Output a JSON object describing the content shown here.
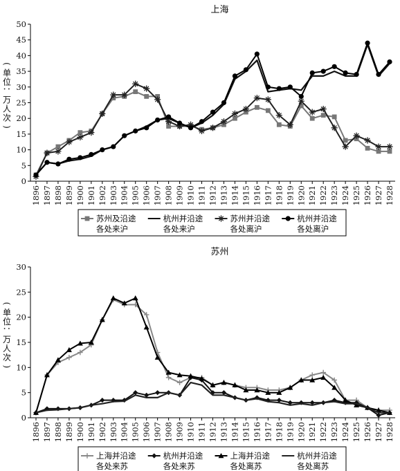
{
  "chart_data": [
    {
      "type": "line",
      "title": "上海",
      "ylabel": "(单位：万人次)",
      "xlabel": "",
      "ylim": [
        0,
        50
      ],
      "yticks": [
        0,
        5,
        10,
        15,
        20,
        25,
        30,
        35,
        40,
        45,
        50
      ],
      "categories": [
        "1896",
        "1897",
        "1898",
        "1899",
        "1900",
        "1901",
        "1902",
        "1903",
        "1904",
        "1905",
        "1906",
        "1907",
        "1908",
        "1909",
        "1910",
        "1911",
        "1912",
        "1913",
        "1914",
        "1915",
        "1916",
        "1917",
        "1918",
        "1919",
        "1920",
        "1921",
        "1922",
        "1923",
        "1924",
        "1925",
        "1926",
        "1927",
        "1928"
      ],
      "series": [
        {
          "name": "苏州及沿途各处来沪",
          "color": "#777777",
          "marker": "square",
          "values": [
            2,
            9,
            11,
            13,
            15.5,
            16,
            21.5,
            26.5,
            27,
            28.5,
            27,
            27,
            17.5,
            17.5,
            17.5,
            16.5,
            17,
            18,
            20,
            22,
            23.5,
            22.5,
            18,
            17.5,
            24,
            20,
            21,
            20.5,
            13,
            13.5,
            10.5,
            9.5,
            9.5
          ]
        },
        {
          "name": "杭州并沿途各处来沪",
          "color": "#111111",
          "marker": "none",
          "values": [
            2,
            6,
            5.5,
            6.5,
            7,
            8,
            10,
            11,
            14.5,
            16,
            17.5,
            19.5,
            20,
            18.5,
            17,
            18.5,
            21,
            24.5,
            32.5,
            35,
            38.5,
            28.5,
            29,
            29.5,
            29,
            33.5,
            33.5,
            35,
            33.5,
            33.5,
            43.5,
            33.5,
            37.5
          ]
        },
        {
          "name": "苏州并沿途各处离沪",
          "color": "#222222",
          "marker": "star",
          "values": [
            1.5,
            9,
            9.5,
            12.5,
            14,
            15.5,
            21.5,
            27.5,
            27.5,
            31,
            29.5,
            26,
            19,
            17.5,
            18,
            16,
            17,
            19,
            21.5,
            23,
            26.5,
            26,
            21,
            18,
            25.5,
            22,
            23,
            17,
            11,
            14.5,
            13,
            11,
            11
          ]
        },
        {
          "name": "杭州并沿途各处离沪",
          "color": "#000000",
          "marker": "circle",
          "values": [
            2,
            6,
            5.5,
            7,
            7.5,
            8.5,
            10,
            11,
            14.5,
            16,
            17,
            19.5,
            20.5,
            18.5,
            17,
            19,
            22,
            25,
            33.5,
            35.5,
            40.5,
            30,
            29.5,
            30,
            27,
            34.5,
            35,
            36.5,
            34.5,
            34,
            44,
            34,
            38
          ]
        }
      ],
      "legend_position": "bottom"
    },
    {
      "type": "line",
      "title": "苏州",
      "ylabel": "(单位：万人次)",
      "xlabel": "",
      "ylim": [
        0,
        30
      ],
      "yticks": [
        0,
        5,
        10,
        15,
        20,
        25,
        30
      ],
      "categories": [
        "1896",
        "1897",
        "1898",
        "1899",
        "1900",
        "1901",
        "1902",
        "1903",
        "1904",
        "1905",
        "1906",
        "1907",
        "1908",
        "1909",
        "1910",
        "1911",
        "1912",
        "1913",
        "1914",
        "1915",
        "1916",
        "1917",
        "1918",
        "1919",
        "1920",
        "1921",
        "1922",
        "1923",
        "1924",
        "1925",
        "1926",
        "1927",
        "1928"
      ],
      "series": [
        {
          "name": "上海并沿途各处来苏",
          "color": "#888888",
          "marker": "plus",
          "values": [
            1,
            8.5,
            11,
            12,
            13,
            14.5,
            19.5,
            23.5,
            22.5,
            22.5,
            20.5,
            13,
            8,
            7,
            8,
            8,
            6.5,
            7,
            6.5,
            6,
            6,
            5.5,
            5.5,
            6,
            7.5,
            8.5,
            9,
            7.5,
            3.5,
            3.5,
            2,
            1.5,
            1.5
          ]
        },
        {
          "name": "杭州并沿途各处来苏",
          "color": "#111111",
          "marker": "diamond",
          "values": [
            1,
            1.8,
            1.8,
            1.8,
            2,
            2.5,
            3.5,
            3.5,
            3.5,
            5,
            4.5,
            5,
            5,
            4.5,
            8,
            7.5,
            5,
            5,
            4,
            3.5,
            4,
            3.5,
            3.5,
            3,
            3,
            3,
            3,
            3.5,
            3,
            3,
            2,
            0.5,
            1
          ]
        },
        {
          "name": "上海并沿途各处离苏",
          "color": "#000000",
          "marker": "triangle",
          "values": [
            1,
            8.5,
            11.5,
            13.5,
            14.8,
            15,
            19.5,
            23.8,
            22.8,
            23.8,
            18,
            12,
            9,
            8.5,
            8.3,
            7.8,
            6.5,
            7,
            6.5,
            5.5,
            5.5,
            5,
            5,
            6,
            7.5,
            7.5,
            8,
            6,
            3.5,
            2.5,
            2,
            1.5,
            1
          ]
        },
        {
          "name": "杭州并沿途各处离苏",
          "color": "#222222",
          "marker": "none",
          "values": [
            1,
            1.5,
            1.6,
            1.8,
            2,
            2.5,
            2.8,
            3.2,
            3.3,
            4.5,
            4,
            4,
            5,
            4.5,
            7,
            6.5,
            4.5,
            4.5,
            4,
            3.5,
            3.8,
            3.2,
            3,
            2.5,
            2.8,
            2.5,
            3,
            3.2,
            2.8,
            2.8,
            2,
            1,
            1
          ]
        }
      ],
      "legend_position": "bottom"
    }
  ]
}
